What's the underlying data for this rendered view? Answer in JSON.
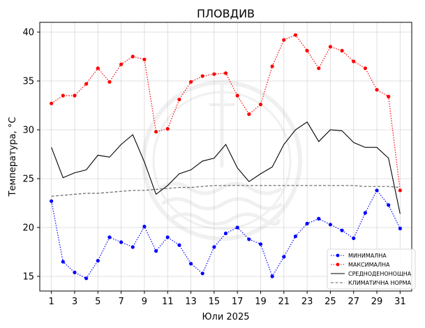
{
  "chart_data": {
    "type": "line",
    "title": "ПЛОВДИВ",
    "xlabel": "Юли  2025",
    "ylabel": "Температура,  °C",
    "xlim": [
      0,
      32
    ],
    "ylim": [
      13.5,
      41
    ],
    "xticks": [
      1,
      3,
      5,
      7,
      9,
      11,
      13,
      15,
      17,
      19,
      21,
      23,
      25,
      27,
      29,
      31
    ],
    "xtick_labels": [
      "1",
      "3",
      "5",
      "7",
      "9",
      "11",
      "13",
      "15",
      "17",
      "19",
      "21",
      "23",
      "25",
      "27",
      "29",
      "31"
    ],
    "yticks": [
      15,
      20,
      25,
      30,
      35,
      40
    ],
    "ytick_labels": [
      "15",
      "20",
      "25",
      "30",
      "35",
      "40"
    ],
    "grid": true,
    "legend_position": "bottom-right",
    "x": [
      1,
      2,
      3,
      4,
      5,
      6,
      7,
      8,
      9,
      10,
      11,
      12,
      13,
      14,
      15,
      16,
      17,
      18,
      19,
      20,
      21,
      22,
      23,
      24,
      25,
      26,
      27,
      28,
      29,
      30,
      31
    ],
    "series": [
      {
        "name": "МИНИМАЛНА",
        "color": "#0000ff",
        "style": "dotted",
        "marker": true,
        "values": [
          22.7,
          16.5,
          15.4,
          14.8,
          16.6,
          19.0,
          18.5,
          18.0,
          20.1,
          17.6,
          19.0,
          18.2,
          16.3,
          15.3,
          18.0,
          19.4,
          20.0,
          18.8,
          18.3,
          15.0,
          17.0,
          19.1,
          20.4,
          20.9,
          20.3,
          19.7,
          18.9,
          21.5,
          23.8,
          22.3,
          19.9
        ]
      },
      {
        "name": "МАКСИМАЛНА",
        "color": "#ff0000",
        "style": "dotted",
        "marker": true,
        "values": [
          32.7,
          33.5,
          33.5,
          34.7,
          36.3,
          34.9,
          36.7,
          37.5,
          37.2,
          29.8,
          30.1,
          33.1,
          34.9,
          35.5,
          35.7,
          35.8,
          33.5,
          31.6,
          32.6,
          36.5,
          39.2,
          39.7,
          38.1,
          36.3,
          38.5,
          38.1,
          37.0,
          36.3,
          34.1,
          33.4,
          23.8
        ]
      },
      {
        "name": "СРЕДНОДЕНОНОЩНА",
        "color": "#000000",
        "style": "solid",
        "marker": false,
        "values": [
          28.2,
          25.1,
          25.6,
          25.9,
          27.4,
          27.2,
          28.5,
          29.5,
          26.7,
          23.4,
          24.3,
          25.5,
          25.9,
          26.8,
          27.1,
          28.5,
          26.1,
          24.7,
          25.5,
          26.2,
          28.5,
          30.0,
          30.8,
          28.8,
          30.0,
          29.9,
          28.7,
          28.2,
          28.2,
          27.1,
          21.4
        ]
      },
      {
        "name": "КЛИМАТИЧНА НОРМА",
        "color": "#666666",
        "style": "dashed",
        "marker": false,
        "values": [
          23.2,
          23.3,
          23.4,
          23.5,
          23.5,
          23.6,
          23.7,
          23.8,
          23.8,
          23.9,
          24.0,
          24.1,
          24.1,
          24.2,
          24.3,
          24.3,
          24.3,
          24.3,
          24.3,
          24.3,
          24.3,
          24.3,
          24.3,
          24.3,
          24.3,
          24.3,
          24.3,
          24.2,
          24.2,
          24.2,
          24.1
        ]
      }
    ]
  }
}
